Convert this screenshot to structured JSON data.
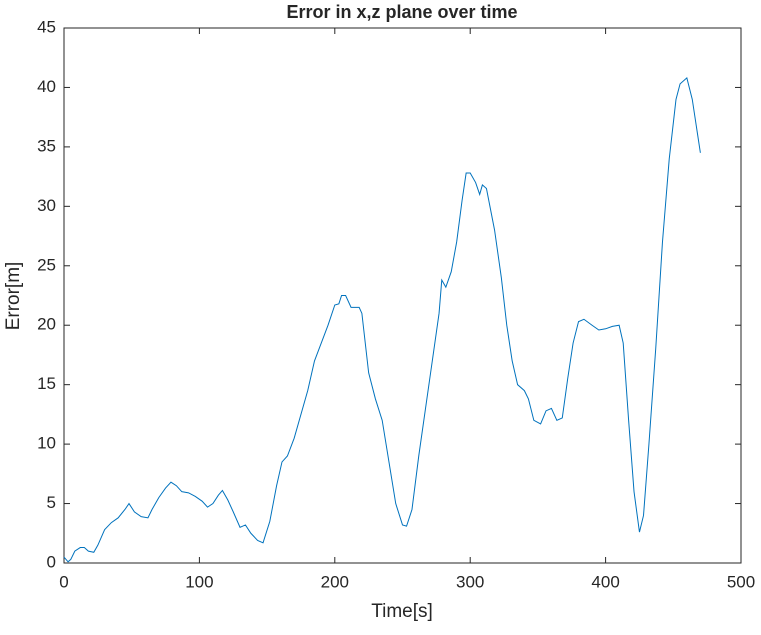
{
  "chart_data": {
    "type": "line",
    "title": "Error in x,z plane over time",
    "x_label": "Time[s]",
    "y_label": "Error[m]",
    "xlim": [
      0,
      500
    ],
    "ylim": [
      0,
      45
    ],
    "xticks": [
      0,
      100,
      200,
      300,
      400,
      500
    ],
    "yticks": [
      0,
      5,
      10,
      15,
      20,
      25,
      30,
      35,
      40,
      45
    ],
    "grid": false,
    "x": [
      0,
      3,
      5,
      8,
      12,
      15,
      18,
      22,
      25,
      30,
      35,
      40,
      45,
      48,
      52,
      57,
      62,
      65,
      70,
      75,
      79,
      83,
      87,
      92,
      97,
      102,
      106,
      110,
      114,
      117,
      121,
      125,
      130,
      134,
      138,
      143,
      147,
      152,
      157,
      161,
      165,
      170,
      175,
      180,
      185,
      190,
      195,
      200,
      203,
      205,
      208,
      212,
      218,
      220,
      225,
      230,
      235,
      240,
      245,
      250,
      253,
      257,
      262,
      267,
      272,
      277,
      279,
      282,
      286,
      290,
      294,
      297,
      300,
      304,
      307,
      309,
      312,
      318,
      323,
      327,
      331,
      335,
      340,
      343,
      347,
      352,
      356,
      360,
      364,
      368,
      372,
      376,
      380,
      384,
      390,
      395,
      400,
      405,
      410,
      413,
      417,
      421,
      425,
      428,
      432,
      437,
      442,
      447,
      452,
      455,
      460,
      464,
      468,
      470
    ],
    "series": [
      {
        "name": "Error",
        "color": "#0072bd",
        "values": [
          0.5,
          0.1,
          0.3,
          1.0,
          1.3,
          1.3,
          1.0,
          0.9,
          1.5,
          2.8,
          3.4,
          3.8,
          4.5,
          5.0,
          4.3,
          3.9,
          3.8,
          4.5,
          5.5,
          6.3,
          6.8,
          6.5,
          6.0,
          5.9,
          5.6,
          5.2,
          4.7,
          5.0,
          5.7,
          6.1,
          5.3,
          4.3,
          3.0,
          3.2,
          2.5,
          1.9,
          1.7,
          3.5,
          6.5,
          8.5,
          9.0,
          10.5,
          12.5,
          14.5,
          17.0,
          18.5,
          20.0,
          21.7,
          21.8,
          22.5,
          22.5,
          21.5,
          21.5,
          21.0,
          16.0,
          13.8,
          12.0,
          8.5,
          5.0,
          3.2,
          3.1,
          4.5,
          9.0,
          13.0,
          17.0,
          21.0,
          23.8,
          23.2,
          24.5,
          27.0,
          30.5,
          32.8,
          32.8,
          32.0,
          31.0,
          31.8,
          31.5,
          28.0,
          24.0,
          20.0,
          17.0,
          15.0,
          14.5,
          13.8,
          12.0,
          11.7,
          12.8,
          13.0,
          12.0,
          12.2,
          15.5,
          18.5,
          20.3,
          20.5,
          20.0,
          19.6,
          19.7,
          19.9,
          20.0,
          18.5,
          12.0,
          6.0,
          2.6,
          4.0,
          10.0,
          18.0,
          27.0,
          34.0,
          39.0,
          40.3,
          40.8,
          39.0,
          36.0,
          34.5
        ]
      }
    ]
  }
}
